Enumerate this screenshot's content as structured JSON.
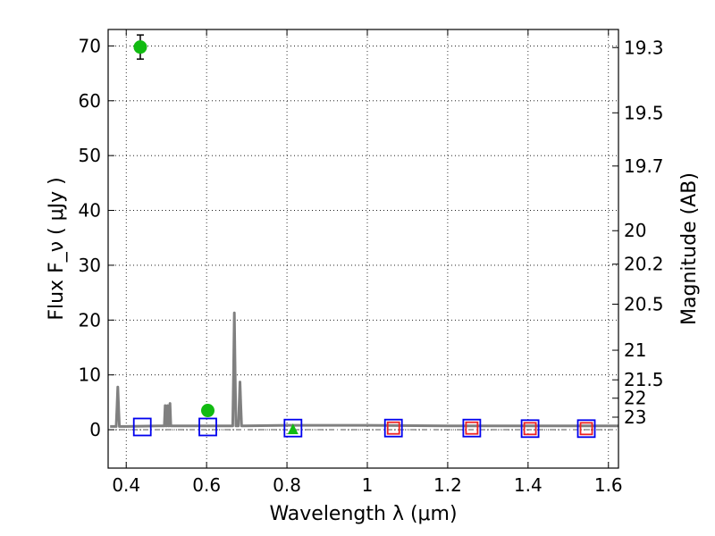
{
  "chart_data": {
    "type": "scatter",
    "xlabel": "Wavelength  λ (μm)",
    "ylabel": "Flux  F_ν  ( μJy )",
    "ylabel_right": "Magnitude (AB)",
    "xlim": [
      0.355,
      1.625
    ],
    "ylim": [
      -7,
      73
    ],
    "grid": true,
    "x_ticks": [
      0.4,
      0.6,
      0.8,
      1.0,
      1.2,
      1.4,
      1.6
    ],
    "x_tick_labels": [
      "0.4",
      "0.6",
      "0.8",
      "1",
      "1.2",
      "1.4",
      "1.6"
    ],
    "y_ticks": [
      0,
      10,
      20,
      30,
      40,
      50,
      60,
      70
    ],
    "y_tick_labels": [
      "0",
      "10",
      "20",
      "30",
      "40",
      "50",
      "60",
      "70"
    ],
    "right_ticks": [
      {
        "label": "19.3",
        "flux": 69.7
      },
      {
        "label": "19.5",
        "flux": 57.8
      },
      {
        "label": "19.7",
        "flux": 48.1
      },
      {
        "label": "20",
        "flux": 36.3
      },
      {
        "label": "20.2",
        "flux": 30.2
      },
      {
        "label": "20.5",
        "flux": 22.9
      },
      {
        "label": "21",
        "flux": 14.5
      },
      {
        "label": "21.5",
        "flux": 9.1
      },
      {
        "label": "22",
        "flux": 5.75
      },
      {
        "label": "23",
        "flux": 2.29
      }
    ],
    "series": [
      {
        "type": "line",
        "color": "#808080",
        "x": [
          0.36,
          0.375,
          0.377,
          0.379,
          0.381,
          0.383,
          0.4,
          0.48,
          0.495,
          0.497,
          0.499,
          0.501,
          0.503,
          0.505,
          0.507,
          0.509,
          0.511,
          0.513,
          0.515,
          0.65,
          0.665,
          0.667,
          0.669,
          0.671,
          0.673,
          0.676,
          0.679,
          0.681,
          0.683,
          0.685,
          0.687,
          0.69,
          0.8,
          1.0,
          1.2,
          1.4,
          1.625
        ],
        "y": [
          0.6,
          0.6,
          4.0,
          7.8,
          4.0,
          0.6,
          0.6,
          0.7,
          0.7,
          4.4,
          0.7,
          0.7,
          4.4,
          0.7,
          0.7,
          4.8,
          0.7,
          0.7,
          0.7,
          0.7,
          0.7,
          10.0,
          21.3,
          10.0,
          0.7,
          0.7,
          0.7,
          4.5,
          8.7,
          4.5,
          0.7,
          0.7,
          0.8,
          0.8,
          0.7,
          0.7,
          0.7
        ]
      },
      {
        "type": "scatter",
        "marker": "circle",
        "color": "#11bb11",
        "x": [
          0.435,
          0.603
        ],
        "y": [
          69.8,
          3.5
        ],
        "yerr": [
          2.2,
          0.4
        ]
      },
      {
        "type": "scatter",
        "marker": "triangle",
        "color": "#11bb11",
        "x": [
          0.815
        ],
        "y": [
          0.0
        ]
      },
      {
        "type": "scatter",
        "marker": "open-square",
        "color": "#0000ee",
        "x": [
          0.44,
          0.603,
          0.815,
          1.065,
          1.26,
          1.405,
          1.545
        ],
        "y": [
          0.5,
          0.5,
          0.3,
          0.3,
          0.3,
          0.2,
          0.2
        ]
      },
      {
        "type": "scatter",
        "marker": "open-square",
        "color": "#ee2222",
        "x": [
          1.065,
          1.26,
          1.405,
          1.545
        ],
        "y": [
          0.3,
          0.3,
          0.2,
          0.2
        ]
      }
    ],
    "reference_line": {
      "y": 0,
      "style": "dash-dot",
      "color": "#555555"
    }
  }
}
